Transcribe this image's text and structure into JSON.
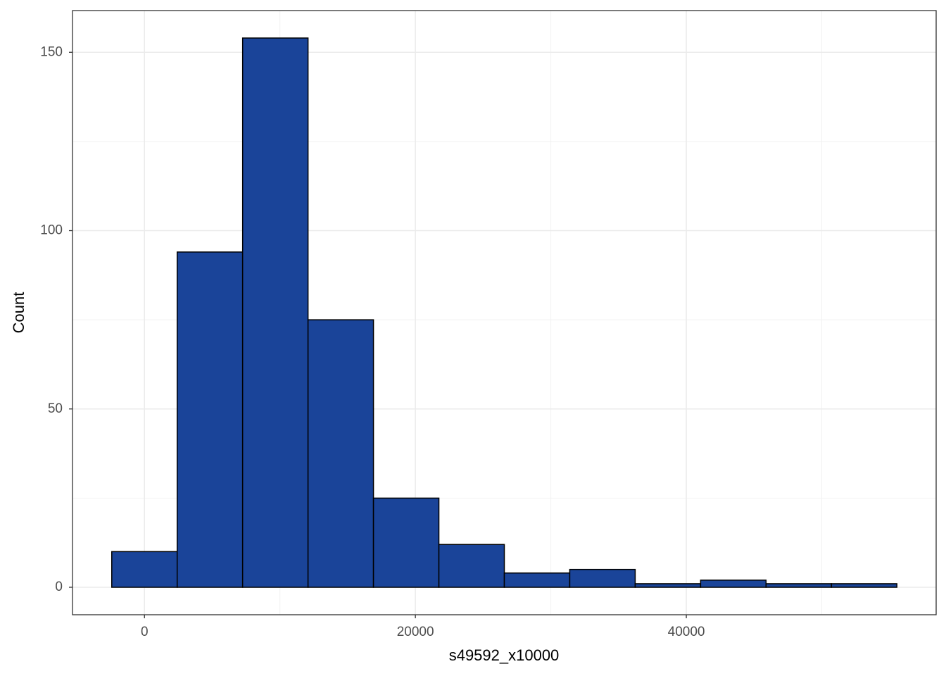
{
  "chart_data": {
    "type": "histogram",
    "x_label": "s49592_x10000",
    "y_label": "Count",
    "bins": [
      -2415,
      2415,
      7245,
      12075,
      16905,
      21735,
      26565,
      31395,
      36225,
      41055,
      45885,
      50715,
      55545
    ],
    "values": [
      10,
      94,
      154,
      75,
      25,
      12,
      4,
      5,
      1,
      2,
      1,
      1
    ],
    "color": "#1a4499",
    "edge_color": "#000000",
    "xlim": [
      -5313,
      58443
    ],
    "ylim": [
      -7.7,
      161.7
    ],
    "xticks": [
      0,
      20000,
      40000
    ],
    "yticks": [
      0,
      50,
      100,
      150
    ],
    "x_minor_ticks": [
      10000,
      30000,
      50000
    ],
    "y_minor_ticks": [
      25,
      75,
      125
    ],
    "grid": true
  }
}
